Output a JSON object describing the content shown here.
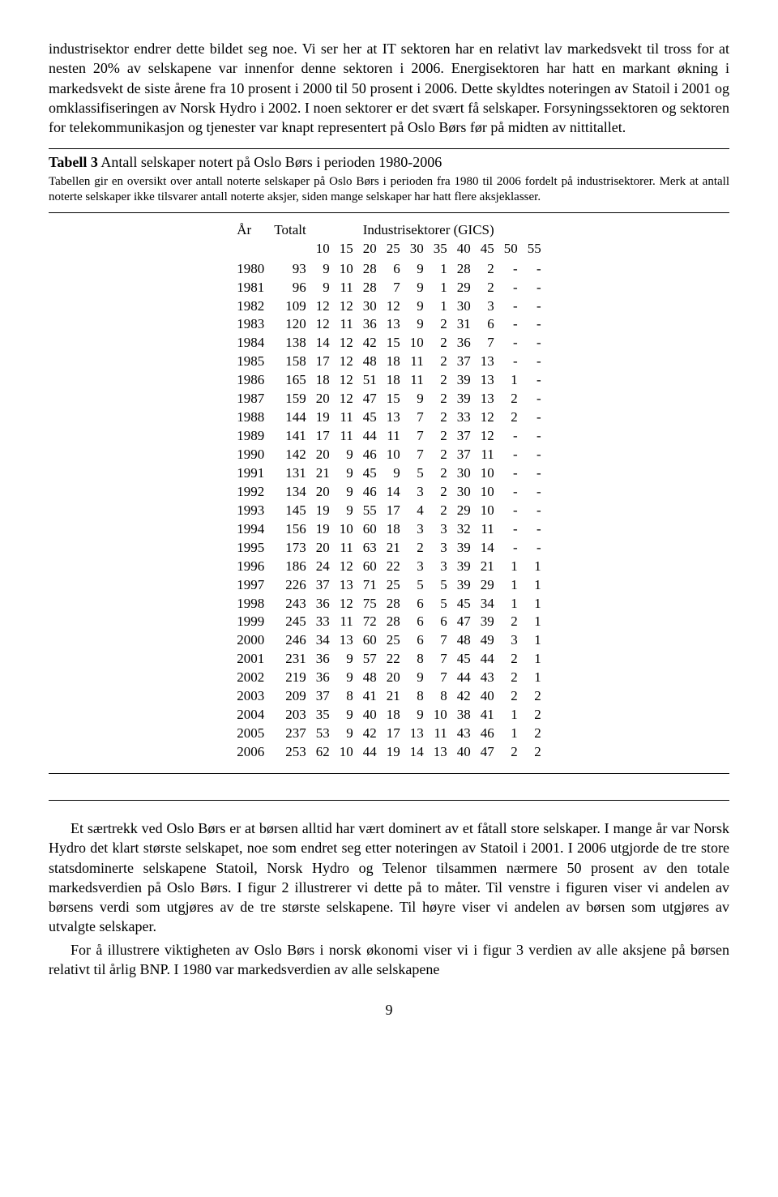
{
  "intro_para": "industrisektor endrer dette bildet seg noe. Vi ser her at IT sektoren har en relativt lav markedsvekt til tross for at nesten 20% av selskapene var innenfor denne sektoren i 2006. Energisektoren har hatt en markant økning i markedsvekt de siste årene fra 10 prosent i 2000 til 50 prosent i 2006. Dette skyldtes noteringen av Statoil i 2001 og omklassifiseringen av Norsk Hydro i 2002. I noen sektorer er det svært få selskaper. Forsyningssektoren og sektoren for telekommunikasjon og tjenester var knapt representert på Oslo Børs før på midten av nittitallet.",
  "table_label": "Tabell 3",
  "table_title_rest": " Antall selskaper notert på Oslo Børs i perioden 1980-2006",
  "table_caption": "Tabellen gir en oversikt over antall noterte selskaper på Oslo Børs i perioden fra 1980 til 2006 fordelt på industrisektorer. Merk at antall noterte selskaper ikke tilsvarer antall noterte aksjer, siden mange selskaper har hatt flere aksjeklasser.",
  "col_year": "År",
  "col_total": "Totalt",
  "col_span": "Industrisektorer (GICS)",
  "sector_codes": [
    "10",
    "15",
    "20",
    "25",
    "30",
    "35",
    "40",
    "45",
    "50",
    "55"
  ],
  "rows": [
    [
      "1980",
      "93",
      "9",
      "10",
      "28",
      "6",
      "9",
      "1",
      "28",
      "2",
      "-",
      "-"
    ],
    [
      "1981",
      "96",
      "9",
      "11",
      "28",
      "7",
      "9",
      "1",
      "29",
      "2",
      "-",
      "-"
    ],
    [
      "1982",
      "109",
      "12",
      "12",
      "30",
      "12",
      "9",
      "1",
      "30",
      "3",
      "-",
      "-"
    ],
    [
      "1983",
      "120",
      "12",
      "11",
      "36",
      "13",
      "9",
      "2",
      "31",
      "6",
      "-",
      "-"
    ],
    [
      "1984",
      "138",
      "14",
      "12",
      "42",
      "15",
      "10",
      "2",
      "36",
      "7",
      "-",
      "-"
    ],
    [
      "1985",
      "158",
      "17",
      "12",
      "48",
      "18",
      "11",
      "2",
      "37",
      "13",
      "-",
      "-"
    ],
    [
      "1986",
      "165",
      "18",
      "12",
      "51",
      "18",
      "11",
      "2",
      "39",
      "13",
      "1",
      "-"
    ],
    [
      "1987",
      "159",
      "20",
      "12",
      "47",
      "15",
      "9",
      "2",
      "39",
      "13",
      "2",
      "-"
    ],
    [
      "1988",
      "144",
      "19",
      "11",
      "45",
      "13",
      "7",
      "2",
      "33",
      "12",
      "2",
      "-"
    ],
    [
      "1989",
      "141",
      "17",
      "11",
      "44",
      "11",
      "7",
      "2",
      "37",
      "12",
      "-",
      "-"
    ],
    [
      "1990",
      "142",
      "20",
      "9",
      "46",
      "10",
      "7",
      "2",
      "37",
      "11",
      "-",
      "-"
    ],
    [
      "1991",
      "131",
      "21",
      "9",
      "45",
      "9",
      "5",
      "2",
      "30",
      "10",
      "-",
      "-"
    ],
    [
      "1992",
      "134",
      "20",
      "9",
      "46",
      "14",
      "3",
      "2",
      "30",
      "10",
      "-",
      "-"
    ],
    [
      "1993",
      "145",
      "19",
      "9",
      "55",
      "17",
      "4",
      "2",
      "29",
      "10",
      "-",
      "-"
    ],
    [
      "1994",
      "156",
      "19",
      "10",
      "60",
      "18",
      "3",
      "3",
      "32",
      "11",
      "-",
      "-"
    ],
    [
      "1995",
      "173",
      "20",
      "11",
      "63",
      "21",
      "2",
      "3",
      "39",
      "14",
      "-",
      "-"
    ],
    [
      "1996",
      "186",
      "24",
      "12",
      "60",
      "22",
      "3",
      "3",
      "39",
      "21",
      "1",
      "1"
    ],
    [
      "1997",
      "226",
      "37",
      "13",
      "71",
      "25",
      "5",
      "5",
      "39",
      "29",
      "1",
      "1"
    ],
    [
      "1998",
      "243",
      "36",
      "12",
      "75",
      "28",
      "6",
      "5",
      "45",
      "34",
      "1",
      "1"
    ],
    [
      "1999",
      "245",
      "33",
      "11",
      "72",
      "28",
      "6",
      "6",
      "47",
      "39",
      "2",
      "1"
    ],
    [
      "2000",
      "246",
      "34",
      "13",
      "60",
      "25",
      "6",
      "7",
      "48",
      "49",
      "3",
      "1"
    ],
    [
      "2001",
      "231",
      "36",
      "9",
      "57",
      "22",
      "8",
      "7",
      "45",
      "44",
      "2",
      "1"
    ],
    [
      "2002",
      "219",
      "36",
      "9",
      "48",
      "20",
      "9",
      "7",
      "44",
      "43",
      "2",
      "1"
    ],
    [
      "2003",
      "209",
      "37",
      "8",
      "41",
      "21",
      "8",
      "8",
      "42",
      "40",
      "2",
      "2"
    ],
    [
      "2004",
      "203",
      "35",
      "9",
      "40",
      "18",
      "9",
      "10",
      "38",
      "41",
      "1",
      "2"
    ],
    [
      "2005",
      "237",
      "53",
      "9",
      "42",
      "17",
      "13",
      "11",
      "43",
      "46",
      "1",
      "2"
    ],
    [
      "2006",
      "253",
      "62",
      "10",
      "44",
      "19",
      "14",
      "13",
      "40",
      "47",
      "2",
      "2"
    ]
  ],
  "para2": "Et særtrekk ved Oslo Børs er at børsen alltid har vært dominert av et fåtall store selskaper. I mange år var Norsk Hydro det klart største selskapet, noe som endret seg etter noteringen av Statoil i 2001. I 2006 utgjorde de tre store statsdominerte selskapene Statoil, Norsk Hydro og Telenor tilsammen nærmere 50 prosent av den totale markedsverdien på Oslo Børs. I figur 2 illustrerer vi dette på to måter. Til venstre i figuren viser vi andelen av børsens verdi som utgjøres av de tre største selskapene. Til høyre viser vi andelen av børsen som utgjøres av utvalgte selskaper.",
  "para3": "For å illustrere viktigheten av Oslo Børs i norsk økonomi viser vi i figur 3 verdien av alle aksjene på børsen relativt til årlig BNP. I 1980 var markedsverdien av alle selskapene",
  "page_number": "9"
}
